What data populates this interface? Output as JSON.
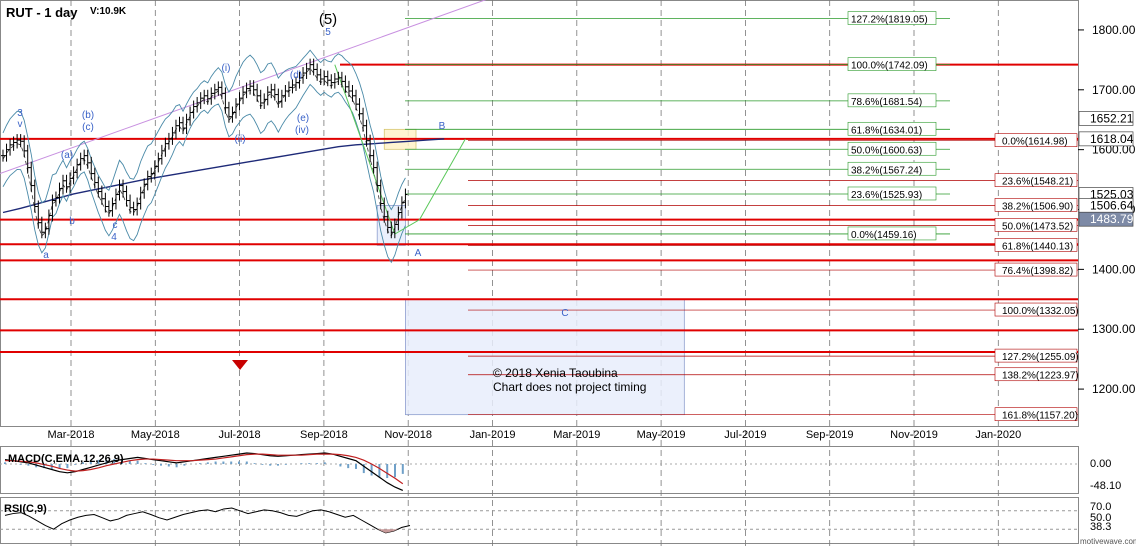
{
  "header": {
    "symbol": "RUT - 1 day",
    "volume": "V:10.9K"
  },
  "watermark": {
    "line1": "© 2018 Xenia Taoubina",
    "line2": "Chart does not project timing",
    "site": "motivewave.com"
  },
  "colors": {
    "bull": "#000000",
    "support": "#e00000",
    "fib_green": "#2a9a2a",
    "fib_red": "#b00000",
    "wave": "#3a62c8",
    "trend": "#c890e0",
    "ma": "#1e2a78",
    "bb": "#4a8aa8"
  },
  "chart_data": [
    {
      "type": "candlestick",
      "title": "RUT - 1 day",
      "x": [
        "Mar-2018",
        "May-2018",
        "Jul-2018",
        "Sep-2018",
        "Nov-2018",
        "Jan-2019",
        "Mar-2019",
        "May-2019",
        "Jul-2019",
        "Sep-2019",
        "Nov-2019",
        "Jan-2020"
      ],
      "ylim": [
        1140,
        1850
      ],
      "yticks": [
        1200,
        1300,
        1400,
        1500,
        1600,
        1700,
        1800
      ],
      "price_tags": [
        1652.21,
        1618.04,
        1525.03,
        1506.64,
        1483.79
      ],
      "support_lines": [
        1618,
        1742,
        1483,
        1442,
        1415,
        1350,
        1298,
        1262
      ],
      "fib_green": [
        {
          "label": "127.2%(1819.05)",
          "value": 1819.05
        },
        {
          "label": "100.0%(1742.09)",
          "value": 1742.09
        },
        {
          "label": "78.6%(1681.54)",
          "value": 1681.54
        },
        {
          "label": "61.8%(1634.01)",
          "value": 1634.01
        },
        {
          "label": "50.0%(1600.63)",
          "value": 1600.63
        },
        {
          "label": "38.2%(1567.24)",
          "value": 1567.24
        },
        {
          "label": "23.6%(1525.93)",
          "value": 1525.93
        },
        {
          "label": "0.0%(1459.16)",
          "value": 1459.16
        }
      ],
      "fib_red": [
        {
          "label": "0.0%(1614.98)",
          "value": 1614.98
        },
        {
          "label": "23.6%(1548.21)",
          "value": 1548.21
        },
        {
          "label": "38.2%(1506.90)",
          "value": 1506.9
        },
        {
          "label": "50.0%(1473.52)",
          "value": 1473.52
        },
        {
          "label": "61.8%(1440.13)",
          "value": 1440.13
        },
        {
          "label": "76.4%(1398.82)",
          "value": 1398.82
        },
        {
          "label": "100.0%(1332.05)",
          "value": 1332.05
        },
        {
          "label": "127.2%(1255.09)",
          "value": 1255.09
        },
        {
          "label": "138.2%(1223.97)",
          "value": 1223.97
        },
        {
          "label": "161.8%(1157.20)",
          "value": 1157.2
        }
      ],
      "wave_labels": [
        "(5)",
        "5",
        "3",
        "v",
        "(a)",
        "(b)",
        "(c)",
        "(d)",
        "(e)",
        "(i)",
        "(ii)",
        "(iv)",
        "a",
        "b",
        "c",
        "4",
        "B",
        "A",
        "C"
      ],
      "closes": [
        1590,
        1600,
        1608,
        1612,
        1616,
        1614,
        1598,
        1570,
        1540,
        1505,
        1478,
        1462,
        1468,
        1490,
        1515,
        1520,
        1535,
        1548,
        1538,
        1552,
        1562,
        1575,
        1585,
        1590,
        1578,
        1560,
        1545,
        1530,
        1518,
        1505,
        1498,
        1510,
        1525,
        1540,
        1530,
        1515,
        1503,
        1500,
        1510,
        1528,
        1542,
        1555,
        1560,
        1572,
        1585,
        1598,
        1610,
        1618,
        1628,
        1640,
        1645,
        1636,
        1650,
        1662,
        1672,
        1678,
        1686,
        1690,
        1685,
        1694,
        1700,
        1704,
        1694,
        1670,
        1655,
        1662,
        1676,
        1686,
        1696,
        1702,
        1706,
        1700,
        1690,
        1678,
        1684,
        1696,
        1700,
        1692,
        1680,
        1690,
        1698,
        1704,
        1708,
        1712,
        1720,
        1728,
        1735,
        1742,
        1734,
        1725,
        1718,
        1722,
        1716,
        1712,
        1718,
        1720,
        1714,
        1705,
        1698,
        1690,
        1676,
        1660,
        1640,
        1615,
        1590,
        1570,
        1540,
        1510,
        1488,
        1470,
        1462,
        1475,
        1495,
        1512,
        1525
      ],
      "ma": [
        1495,
        1502,
        1510,
        1518,
        1526,
        1532,
        1538,
        1544,
        1550,
        1555,
        1560,
        1565,
        1570,
        1575,
        1580,
        1585,
        1590,
        1595,
        1600,
        1605,
        1608,
        1610,
        1612,
        1614,
        1616,
        1618
      ],
      "target_boxes": [
        {
          "label": "B",
          "x0": 108,
          "x1": 117,
          "y0": 1600.6,
          "y1": 1634.0
        },
        {
          "label": "A",
          "x0": 106,
          "x1": 114,
          "y0": 1440.1,
          "y1": 1506.9
        },
        {
          "label": "C",
          "x0": 114,
          "x1": 193,
          "y0": 1157.2,
          "y1": 1350
        }
      ]
    },
    {
      "type": "line",
      "title": "MACD(C,EMA,12,26,9)",
      "yticks": [
        "0.00",
        "-48.10"
      ],
      "series": [
        {
          "name": "MACD",
          "values": [
            8,
            6,
            4,
            2,
            -2,
            -6,
            -10,
            -14,
            -16,
            -14,
            -10,
            -6,
            -2,
            2,
            6,
            8,
            10,
            12,
            10,
            8,
            6,
            4,
            2,
            4,
            6,
            8,
            10,
            12,
            14,
            16,
            18,
            20,
            19,
            17,
            15,
            14,
            15,
            16,
            17,
            18,
            19,
            20,
            18,
            14,
            10,
            6,
            -4,
            -14,
            -24,
            -34,
            -42,
            -48
          ]
        },
        {
          "name": "Signal",
          "values": [
            6,
            6,
            5,
            4,
            2,
            -1,
            -4,
            -8,
            -11,
            -13,
            -12,
            -10,
            -7,
            -3,
            0,
            3,
            6,
            8,
            9,
            9,
            8,
            7,
            6,
            6,
            6,
            7,
            8,
            9,
            11,
            13,
            15,
            17,
            18,
            18,
            17,
            16,
            16,
            16,
            16,
            17,
            18,
            18,
            18,
            17,
            15,
            12,
            7,
            0,
            -8,
            -17,
            -26,
            -36
          ]
        }
      ]
    },
    {
      "type": "line",
      "title": "RSI(C,9)",
      "yticks": [
        "70.0",
        "50.0",
        "38.3"
      ],
      "ylim": [
        0,
        100
      ],
      "series": [
        {
          "name": "RSI",
          "values": [
            60,
            64,
            66,
            58,
            48,
            38,
            30,
            42,
            50,
            56,
            60,
            62,
            55,
            48,
            52,
            60,
            64,
            68,
            62,
            55,
            50,
            56,
            62,
            66,
            70,
            72,
            68,
            74,
            76,
            70,
            64,
            68,
            72,
            70,
            66,
            60,
            58,
            64,
            70,
            72,
            68,
            62,
            56,
            60,
            50,
            40,
            30,
            22,
            26,
            34,
            38
          ]
        }
      ]
    }
  ]
}
